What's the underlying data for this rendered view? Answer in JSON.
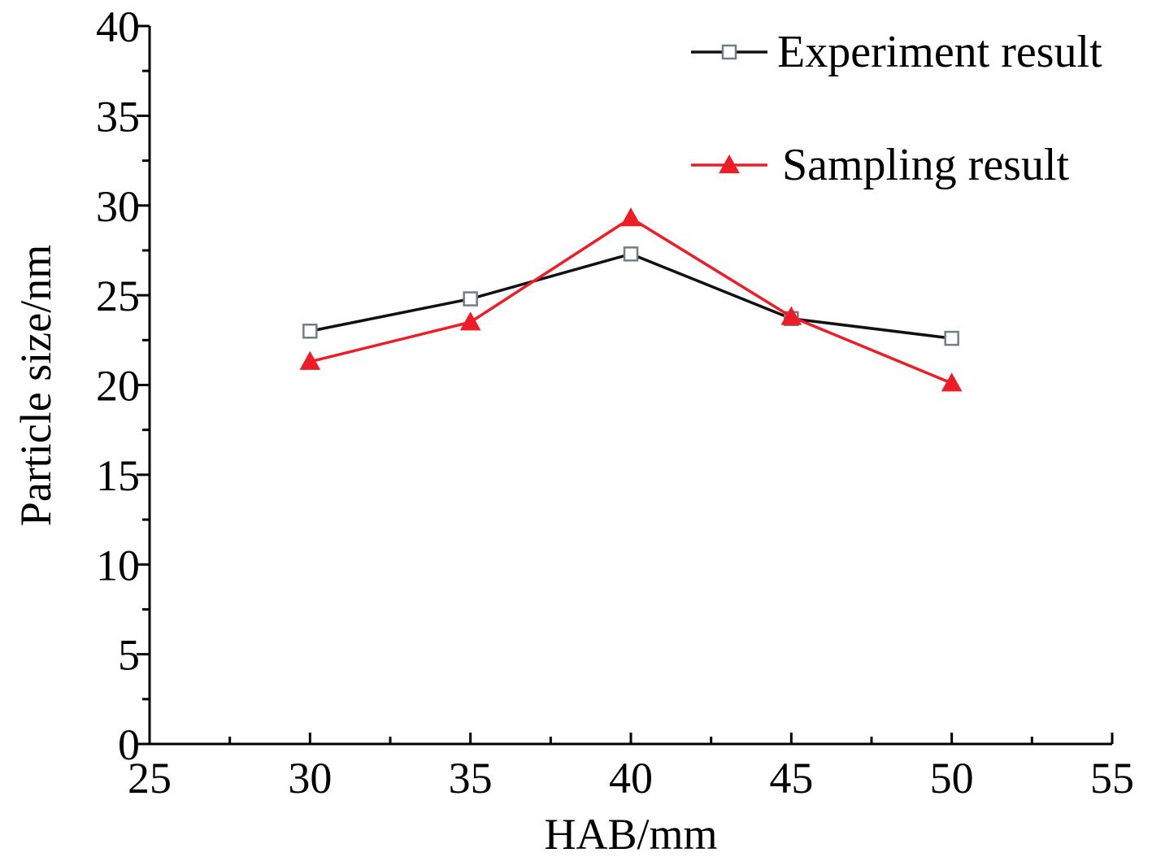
{
  "chart_data": {
    "type": "line",
    "title": "",
    "xlabel": "HAB/mm",
    "ylabel": "Particle size/nm",
    "xlim": [
      25,
      55
    ],
    "ylim": [
      0,
      40
    ],
    "xticks": [
      25,
      30,
      35,
      40,
      45,
      50,
      55
    ],
    "yticks": [
      0,
      5,
      10,
      15,
      20,
      25,
      30,
      35,
      40
    ],
    "x": [
      30,
      35,
      40,
      45,
      50
    ],
    "series": [
      {
        "name": "Experiment result",
        "color": "#111111",
        "marker": "square",
        "values": [
          23.0,
          24.8,
          27.3,
          23.7,
          22.6
        ]
      },
      {
        "name": "Sampling result",
        "color": "#ee1c25",
        "marker": "triangle",
        "values": [
          21.3,
          23.5,
          29.3,
          23.8,
          20.1
        ]
      }
    ],
    "legend_position": "top-right",
    "grid": false
  }
}
